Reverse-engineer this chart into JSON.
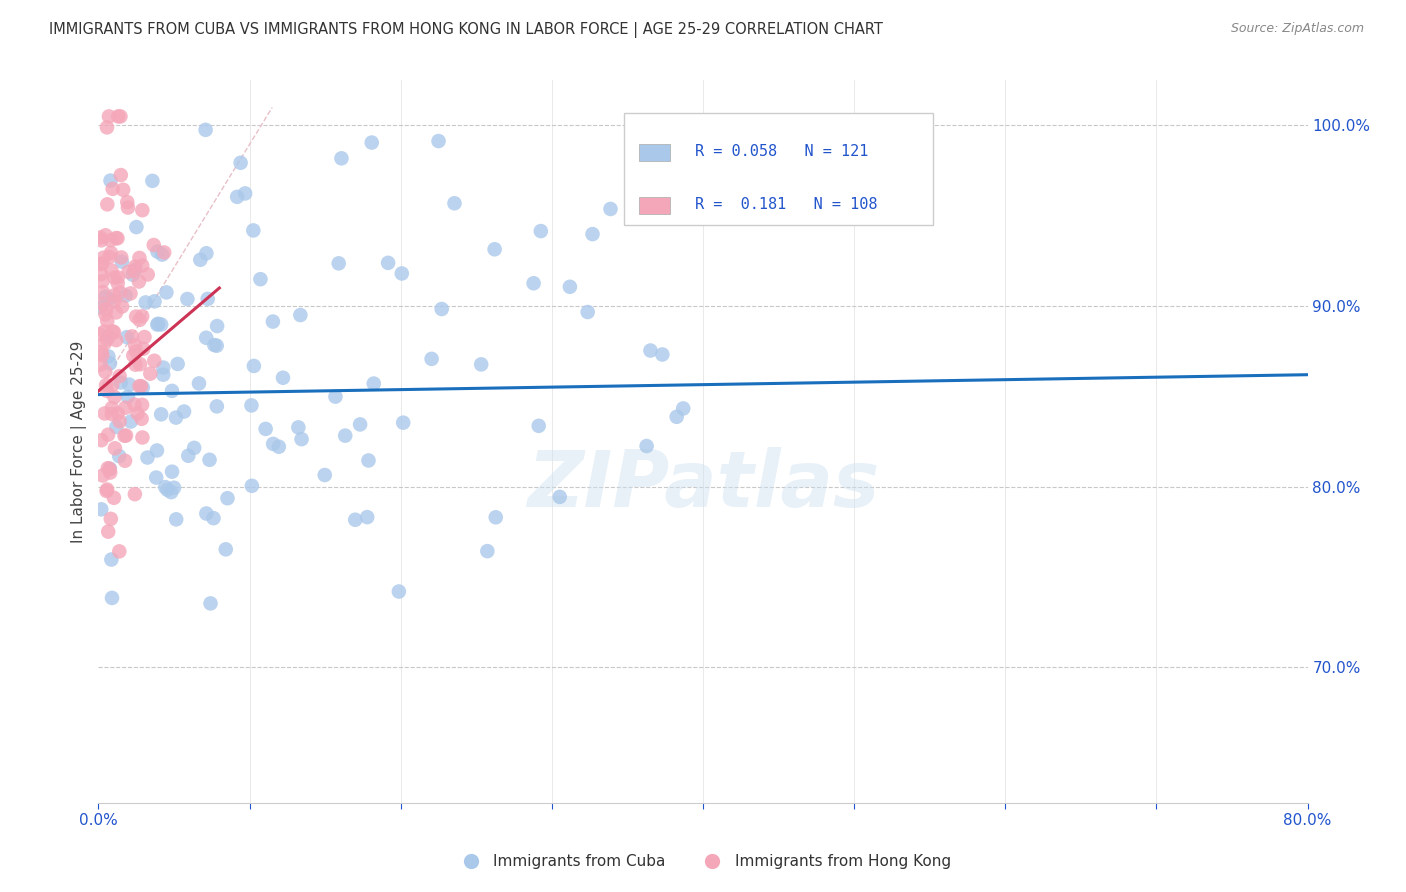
{
  "title": "IMMIGRANTS FROM CUBA VS IMMIGRANTS FROM HONG KONG IN LABOR FORCE | AGE 25-29 CORRELATION CHART",
  "source": "Source: ZipAtlas.com",
  "ylabel": "In Labor Force | Age 25-29",
  "ylabel_right_ticks": [
    "100.0%",
    "90.0%",
    "80.0%",
    "70.0%"
  ],
  "ylabel_right_vals": [
    1.0,
    0.9,
    0.8,
    0.7
  ],
  "xmin": 0.0,
  "xmax": 0.8,
  "ymin": 0.625,
  "ymax": 1.025,
  "R_cuba": 0.058,
  "N_cuba": 121,
  "R_hk": 0.181,
  "N_hk": 108,
  "color_cuba": "#aac8ea",
  "color_hk": "#f4a7b9",
  "line_color_cuba": "#1a6fbd",
  "line_color_hk": "#cc3355",
  "diag_color": "#e8c0c8",
  "watermark": "ZIPatlas",
  "legend_box_color": "#eef3fb",
  "grid_color": "#c8c8c8",
  "title_color": "#333333",
  "tick_color": "#2255cc",
  "background_color": "#ffffff",
  "cuba_trend_x0": 0.0,
  "cuba_trend_x1": 0.8,
  "cuba_trend_y0": 0.851,
  "cuba_trend_y1": 0.862,
  "hk_trend_x0": 0.0,
  "hk_trend_x1": 0.08,
  "hk_trend_y0": 0.853,
  "hk_trend_y1": 0.91
}
